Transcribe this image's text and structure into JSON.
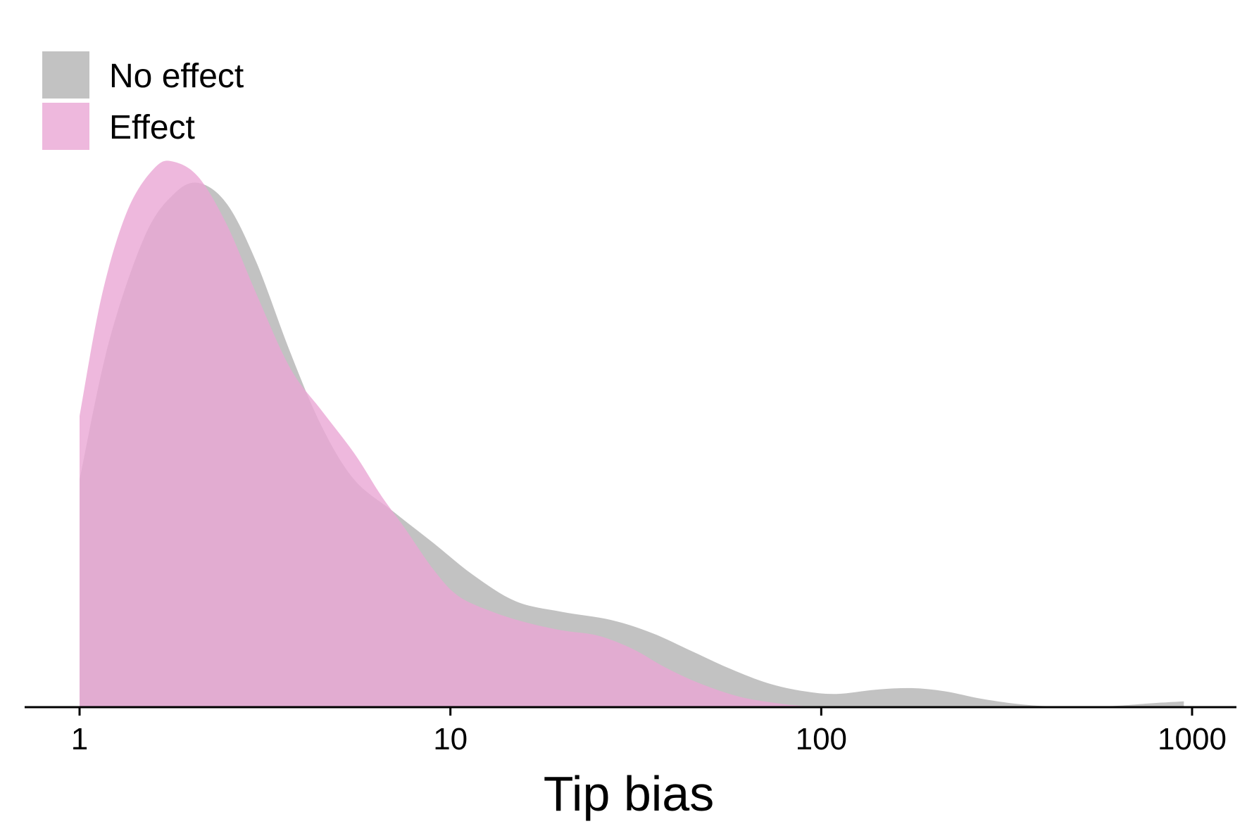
{
  "chart_data": {
    "type": "area",
    "title": "",
    "xlabel": "Tip bias",
    "ylabel": "",
    "x_scale": "log",
    "xlim": [
      0.72,
      1200
    ],
    "ylim": [
      0,
      1.05
    ],
    "x_ticks": [
      {
        "value": 1,
        "label": "1"
      },
      {
        "value": 10,
        "label": "10"
      },
      {
        "value": 100,
        "label": "100"
      },
      {
        "value": 1000,
        "label": "1000"
      }
    ],
    "grid": false,
    "legend_position": "top-left",
    "series": [
      {
        "name": "No effect",
        "color": "#b3b3b3",
        "opacity": 0.8,
        "points": [
          [
            1,
            0.43
          ],
          [
            1.2,
            0.69
          ],
          [
            1.5,
            0.89
          ],
          [
            1.8,
            0.97
          ],
          [
            2.1,
            0.99
          ],
          [
            2.5,
            0.95
          ],
          [
            3,
            0.84
          ],
          [
            3.7,
            0.67
          ],
          [
            4.5,
            0.53
          ],
          [
            5.5,
            0.43
          ],
          [
            7,
            0.37
          ],
          [
            9,
            0.31
          ],
          [
            11.5,
            0.25
          ],
          [
            15,
            0.2
          ],
          [
            20,
            0.18
          ],
          [
            27,
            0.165
          ],
          [
            35,
            0.14
          ],
          [
            45,
            0.105
          ],
          [
            57,
            0.072
          ],
          [
            72,
            0.045
          ],
          [
            90,
            0.03
          ],
          [
            110,
            0.025
          ],
          [
            140,
            0.033
          ],
          [
            175,
            0.036
          ],
          [
            215,
            0.03
          ],
          [
            270,
            0.016
          ],
          [
            350,
            0.005
          ],
          [
            450,
            0.001
          ],
          [
            600,
            0.002
          ],
          [
            800,
            0.008
          ],
          [
            950,
            0.011
          ]
        ]
      },
      {
        "name": "Effect",
        "color": "#eaa6d4",
        "opacity": 0.8,
        "points": [
          [
            1,
            0.55
          ],
          [
            1.15,
            0.78
          ],
          [
            1.35,
            0.94
          ],
          [
            1.6,
            1.02
          ],
          [
            1.8,
            1.03
          ],
          [
            2.1,
            1.0
          ],
          [
            2.5,
            0.91
          ],
          [
            3,
            0.78
          ],
          [
            3.7,
            0.64
          ],
          [
            4.5,
            0.56
          ],
          [
            5.5,
            0.48
          ],
          [
            6.5,
            0.4
          ],
          [
            7.5,
            0.34
          ],
          [
            9,
            0.26
          ],
          [
            10.5,
            0.21
          ],
          [
            13,
            0.18
          ],
          [
            16,
            0.16
          ],
          [
            20,
            0.145
          ],
          [
            25,
            0.135
          ],
          [
            31,
            0.11
          ],
          [
            38,
            0.075
          ],
          [
            47,
            0.045
          ],
          [
            60,
            0.02
          ],
          [
            75,
            0.008
          ],
          [
            90,
            0.002
          ],
          [
            110,
            0
          ]
        ]
      }
    ]
  }
}
